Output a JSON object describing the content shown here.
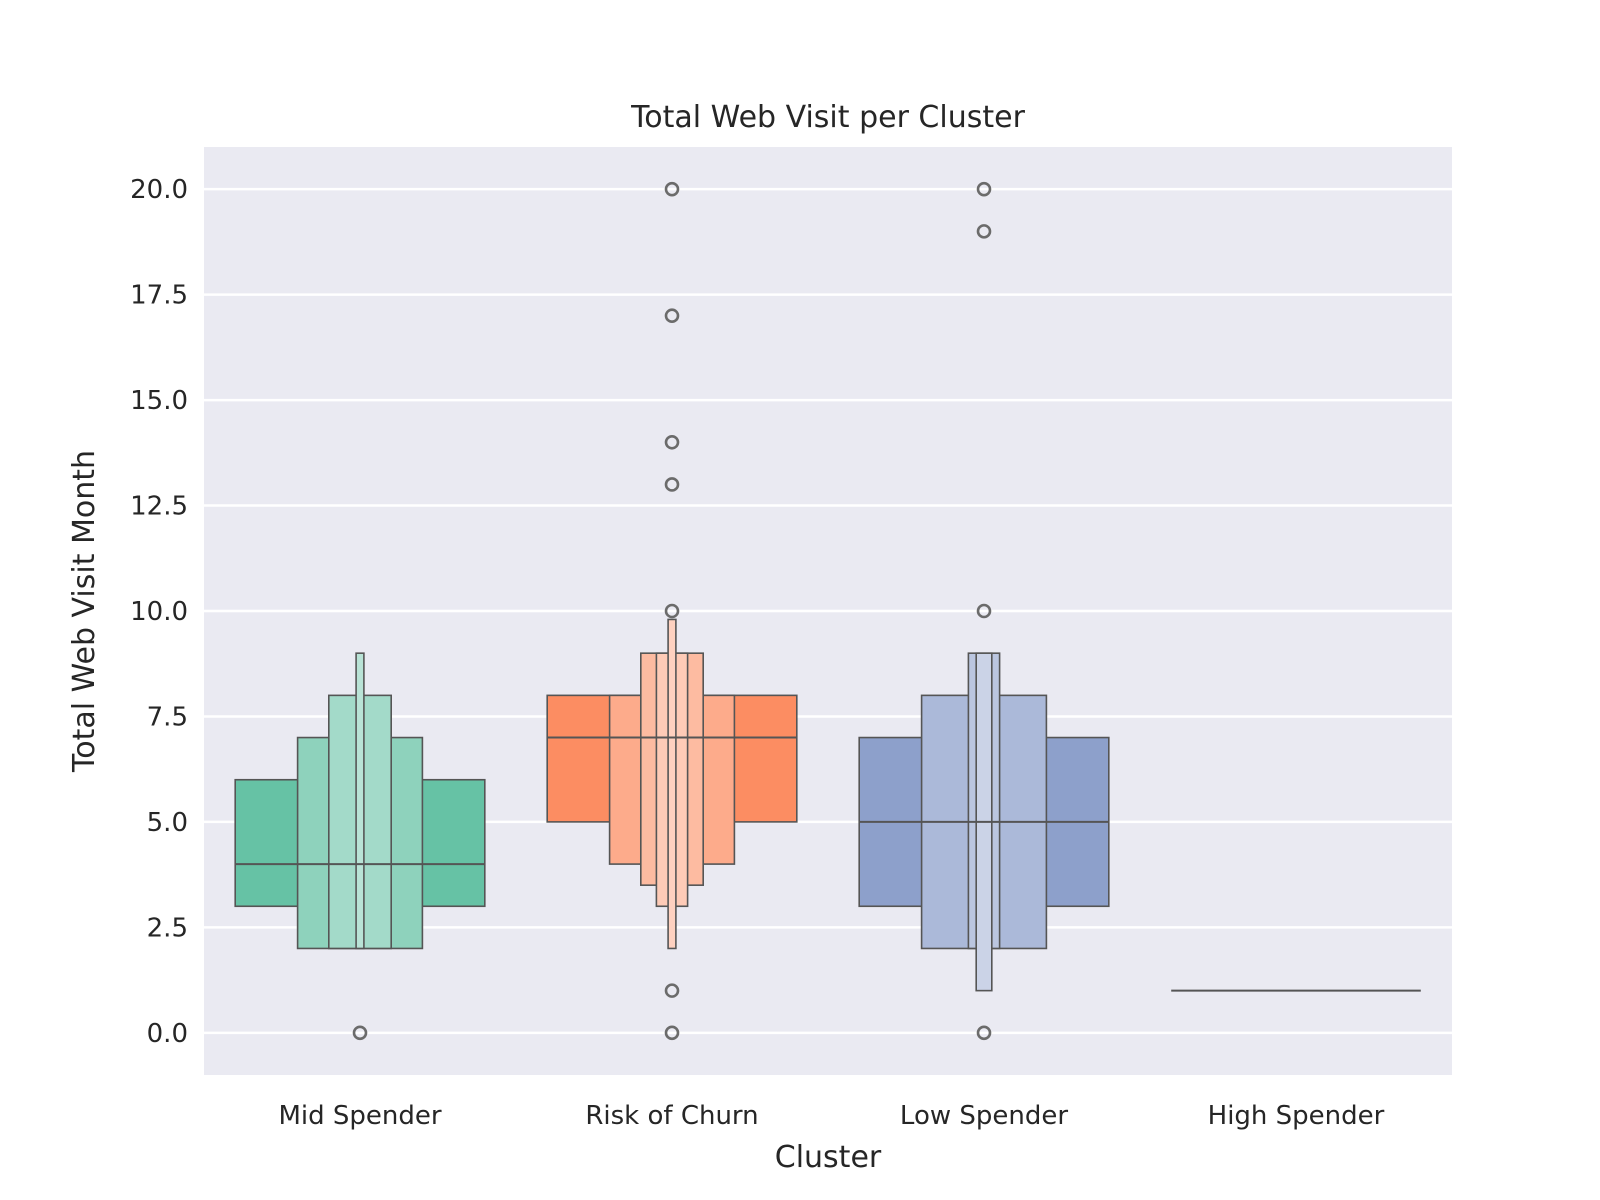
{
  "chart_data": {
    "type": "boxen",
    "title": "Total Web Visit per Cluster",
    "xlabel": "Cluster",
    "ylabel": "Total Web Visit Month",
    "ylim": [
      -1.0,
      21.0
    ],
    "yticks": [
      0.0,
      2.5,
      5.0,
      7.5,
      10.0,
      12.5,
      15.0,
      17.5,
      20.0
    ],
    "ytick_labels": [
      "0.0",
      "2.5",
      "5.0",
      "7.5",
      "10.0",
      "12.5",
      "15.0",
      "17.5",
      "20.0"
    ],
    "grid": true,
    "categories": [
      "Mid Spender",
      "Risk of Churn",
      "Low Spender",
      "High Spender"
    ],
    "series": [
      {
        "category": "Mid Spender",
        "color": "#66c2a5",
        "median": 4,
        "boxes": [
          {
            "low": 3,
            "high": 6,
            "width": 0.8
          },
          {
            "low": 2,
            "high": 7,
            "width": 0.4
          },
          {
            "low": 2,
            "high": 8,
            "width": 0.2
          },
          {
            "low": 2,
            "high": 9,
            "width": 0.025
          }
        ],
        "outliers": [
          0
        ]
      },
      {
        "category": "Risk of Churn",
        "color": "#fc8d62",
        "median": 7,
        "boxes": [
          {
            "low": 5,
            "high": 8,
            "width": 0.8
          },
          {
            "low": 4,
            "high": 8,
            "width": 0.4
          },
          {
            "low": 3.5,
            "high": 9,
            "width": 0.2
          },
          {
            "low": 3,
            "high": 9,
            "width": 0.1
          },
          {
            "low": 2,
            "high": 9.8,
            "width": 0.025
          }
        ],
        "outliers": [
          0,
          1,
          10,
          13,
          14,
          17,
          20
        ]
      },
      {
        "category": "Low Spender",
        "color": "#8da0cb",
        "median": 5,
        "boxes": [
          {
            "low": 3,
            "high": 7,
            "width": 0.8
          },
          {
            "low": 2,
            "high": 8,
            "width": 0.4
          },
          {
            "low": 2,
            "high": 9,
            "width": 0.1
          },
          {
            "low": 1,
            "high": 9,
            "width": 0.05
          }
        ],
        "outliers": [
          0,
          10,
          19,
          20
        ]
      },
      {
        "category": "High Spender",
        "color": "#e78ac3",
        "median": 1,
        "boxes": [
          {
            "low": 1,
            "high": 1,
            "width": 0.8
          }
        ],
        "outliers": []
      }
    ]
  }
}
